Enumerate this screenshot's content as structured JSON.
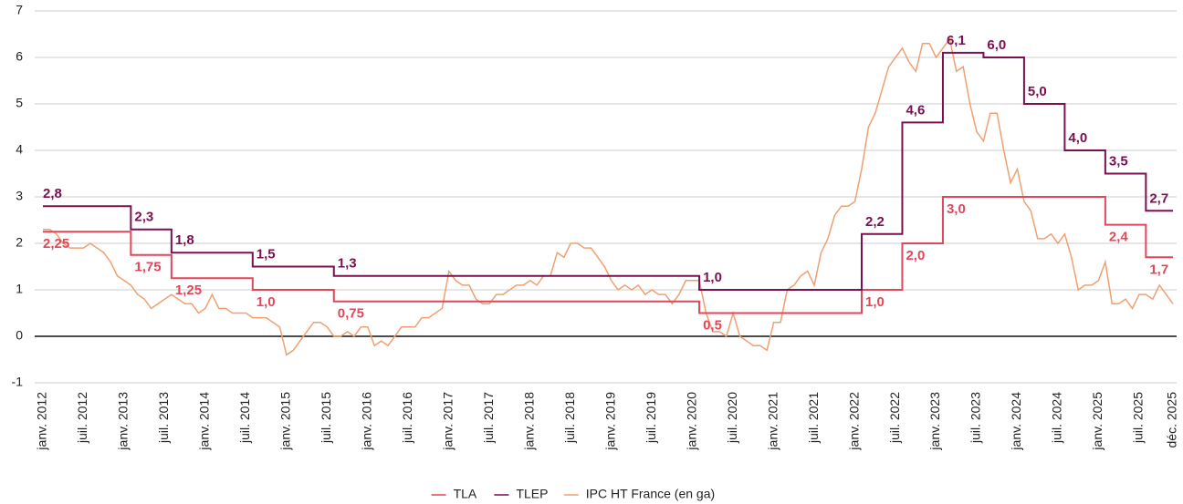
{
  "chart_data": {
    "type": "line",
    "categories": [
      "janv. 2012",
      null,
      null,
      null,
      null,
      null,
      "juil. 2012",
      null,
      null,
      null,
      null,
      null,
      "janv. 2013",
      null,
      null,
      null,
      null,
      null,
      "juil. 2013",
      null,
      null,
      null,
      null,
      null,
      "janv. 2014",
      null,
      null,
      null,
      null,
      null,
      "juil. 2014",
      null,
      null,
      null,
      null,
      null,
      "janv. 2015",
      null,
      null,
      null,
      null,
      null,
      "juil. 2015",
      null,
      null,
      null,
      null,
      null,
      "janv. 2016",
      null,
      null,
      null,
      null,
      null,
      "juil. 2016",
      null,
      null,
      null,
      null,
      null,
      "janv. 2017",
      null,
      null,
      null,
      null,
      null,
      "juil. 2017",
      null,
      null,
      null,
      null,
      null,
      "janv. 2018",
      null,
      null,
      null,
      null,
      null,
      "juil. 2018",
      null,
      null,
      null,
      null,
      null,
      "janv. 2019",
      null,
      null,
      null,
      null,
      null,
      "juil. 2019",
      null,
      null,
      null,
      null,
      null,
      "janv. 2020",
      null,
      null,
      null,
      null,
      null,
      "juil. 2020",
      null,
      null,
      null,
      null,
      null,
      "janv. 2021",
      null,
      null,
      null,
      null,
      null,
      "juil. 2021",
      null,
      null,
      null,
      null,
      null,
      "janv. 2022",
      null,
      null,
      null,
      null,
      null,
      "juil. 2022",
      null,
      null,
      null,
      null,
      null,
      "janv. 2023",
      null,
      null,
      null,
      null,
      null,
      "juil. 2023",
      null,
      null,
      null,
      null,
      null,
      "janv. 2024",
      null,
      null,
      null,
      null,
      null,
      "juil. 2024",
      null,
      null,
      null,
      null,
      null,
      "janv. 2025",
      null,
      null,
      null,
      null,
      null,
      "juil. 2025",
      null,
      null,
      null,
      null,
      "déc. 2025"
    ],
    "series": [
      {
        "name": "TLA",
        "color": "#e0475a",
        "step": true,
        "values": [
          2.25,
          2.25,
          2.25,
          2.25,
          2.25,
          2.25,
          2.25,
          2.25,
          2.25,
          2.25,
          2.25,
          2.25,
          2.25,
          1.75,
          1.75,
          1.75,
          1.75,
          1.75,
          1.75,
          1.25,
          1.25,
          1.25,
          1.25,
          1.25,
          1.25,
          1.25,
          1.25,
          1.25,
          1.25,
          1.25,
          1.25,
          1.0,
          1.0,
          1.0,
          1.0,
          1.0,
          1.0,
          1.0,
          1.0,
          1.0,
          1.0,
          1.0,
          1.0,
          0.75,
          0.75,
          0.75,
          0.75,
          0.75,
          0.75,
          0.75,
          0.75,
          0.75,
          0.75,
          0.75,
          0.75,
          0.75,
          0.75,
          0.75,
          0.75,
          0.75,
          0.75,
          0.75,
          0.75,
          0.75,
          0.75,
          0.75,
          0.75,
          0.75,
          0.75,
          0.75,
          0.75,
          0.75,
          0.75,
          0.75,
          0.75,
          0.75,
          0.75,
          0.75,
          0.75,
          0.75,
          0.75,
          0.75,
          0.75,
          0.75,
          0.75,
          0.75,
          0.75,
          0.75,
          0.75,
          0.75,
          0.75,
          0.75,
          0.75,
          0.75,
          0.75,
          0.75,
          0.75,
          0.5,
          0.5,
          0.5,
          0.5,
          0.5,
          0.5,
          0.5,
          0.5,
          0.5,
          0.5,
          0.5,
          0.5,
          0.5,
          0.5,
          0.5,
          0.5,
          0.5,
          0.5,
          0.5,
          0.5,
          0.5,
          0.5,
          0.5,
          0.5,
          1.0,
          1.0,
          1.0,
          1.0,
          1.0,
          1.0,
          2.0,
          2.0,
          2.0,
          2.0,
          2.0,
          2.0,
          3.0,
          3.0,
          3.0,
          3.0,
          3.0,
          3.0,
          3.0,
          3.0,
          3.0,
          3.0,
          3.0,
          3.0,
          3.0,
          3.0,
          3.0,
          3.0,
          3.0,
          3.0,
          3.0,
          3.0,
          3.0,
          3.0,
          3.0,
          3.0,
          2.4,
          2.4,
          2.4,
          2.4,
          2.4,
          2.4,
          1.7,
          1.7,
          1.7,
          1.7,
          1.7
        ],
        "value_labels": [
          "2,25",
          null,
          null,
          null,
          null,
          null,
          null,
          null,
          null,
          null,
          null,
          null,
          null,
          "1,75",
          null,
          null,
          null,
          null,
          null,
          "1,25",
          null,
          null,
          null,
          null,
          null,
          null,
          null,
          null,
          null,
          null,
          null,
          "1,0",
          null,
          null,
          null,
          null,
          null,
          null,
          null,
          null,
          null,
          null,
          null,
          "0,75",
          null,
          null,
          null,
          null,
          null,
          null,
          null,
          null,
          null,
          null,
          null,
          null,
          null,
          null,
          null,
          null,
          null,
          null,
          null,
          null,
          null,
          null,
          null,
          null,
          null,
          null,
          null,
          null,
          null,
          null,
          null,
          null,
          null,
          null,
          null,
          null,
          null,
          null,
          null,
          null,
          null,
          null,
          null,
          null,
          null,
          null,
          null,
          null,
          null,
          null,
          null,
          null,
          null,
          "0,5",
          null,
          null,
          null,
          null,
          null,
          null,
          null,
          null,
          null,
          null,
          null,
          null,
          null,
          null,
          null,
          null,
          null,
          null,
          null,
          null,
          null,
          null,
          null,
          "1,0",
          null,
          null,
          null,
          null,
          null,
          "2,0",
          null,
          null,
          null,
          null,
          null,
          "3,0",
          null,
          null,
          null,
          null,
          null,
          null,
          null,
          null,
          null,
          null,
          null,
          null,
          null,
          null,
          null,
          null,
          null,
          null,
          null,
          null,
          null,
          null,
          null,
          "2,4",
          null,
          null,
          null,
          null,
          null,
          "1,7",
          null,
          null,
          null,
          null
        ]
      },
      {
        "name": "TLEP",
        "color": "#7a1050",
        "step": true,
        "values": [
          2.8,
          2.8,
          2.8,
          2.8,
          2.8,
          2.8,
          2.8,
          2.8,
          2.8,
          2.8,
          2.8,
          2.8,
          2.8,
          2.3,
          2.3,
          2.3,
          2.3,
          2.3,
          2.3,
          1.8,
          1.8,
          1.8,
          1.8,
          1.8,
          1.8,
          1.8,
          1.8,
          1.8,
          1.8,
          1.8,
          1.8,
          1.5,
          1.5,
          1.5,
          1.5,
          1.5,
          1.5,
          1.5,
          1.5,
          1.5,
          1.5,
          1.5,
          1.5,
          1.3,
          1.3,
          1.3,
          1.3,
          1.3,
          1.3,
          1.3,
          1.3,
          1.3,
          1.3,
          1.3,
          1.3,
          1.3,
          1.3,
          1.3,
          1.3,
          1.3,
          1.3,
          1.3,
          1.3,
          1.3,
          1.3,
          1.3,
          1.3,
          1.3,
          1.3,
          1.3,
          1.3,
          1.3,
          1.3,
          1.3,
          1.3,
          1.3,
          1.3,
          1.3,
          1.3,
          1.3,
          1.3,
          1.3,
          1.3,
          1.3,
          1.3,
          1.3,
          1.3,
          1.3,
          1.3,
          1.3,
          1.3,
          1.3,
          1.3,
          1.3,
          1.3,
          1.3,
          1.3,
          1.0,
          1.0,
          1.0,
          1.0,
          1.0,
          1.0,
          1.0,
          1.0,
          1.0,
          1.0,
          1.0,
          1.0,
          1.0,
          1.0,
          1.0,
          1.0,
          1.0,
          1.0,
          1.0,
          1.0,
          1.0,
          1.0,
          1.0,
          1.0,
          2.2,
          2.2,
          2.2,
          2.2,
          2.2,
          2.2,
          4.6,
          4.6,
          4.6,
          4.6,
          4.6,
          4.6,
          6.1,
          6.1,
          6.1,
          6.1,
          6.1,
          6.1,
          6.0,
          6.0,
          6.0,
          6.0,
          6.0,
          6.0,
          5.0,
          5.0,
          5.0,
          5.0,
          5.0,
          5.0,
          4.0,
          4.0,
          4.0,
          4.0,
          4.0,
          4.0,
          3.5,
          3.5,
          3.5,
          3.5,
          3.5,
          3.5,
          2.7,
          2.7,
          2.7,
          2.7,
          2.7
        ],
        "value_labels": [
          "2,8",
          null,
          null,
          null,
          null,
          null,
          null,
          null,
          null,
          null,
          null,
          null,
          null,
          "2,3",
          null,
          null,
          null,
          null,
          null,
          "1,8",
          null,
          null,
          null,
          null,
          null,
          null,
          null,
          null,
          null,
          null,
          null,
          "1,5",
          null,
          null,
          null,
          null,
          null,
          null,
          null,
          null,
          null,
          null,
          null,
          "1,3",
          null,
          null,
          null,
          null,
          null,
          null,
          null,
          null,
          null,
          null,
          null,
          null,
          null,
          null,
          null,
          null,
          null,
          null,
          null,
          null,
          null,
          null,
          null,
          null,
          null,
          null,
          null,
          null,
          null,
          null,
          null,
          null,
          null,
          null,
          null,
          null,
          null,
          null,
          null,
          null,
          null,
          null,
          null,
          null,
          null,
          null,
          null,
          null,
          null,
          null,
          null,
          null,
          null,
          "1,0",
          null,
          null,
          null,
          null,
          null,
          null,
          null,
          null,
          null,
          null,
          null,
          null,
          null,
          null,
          null,
          null,
          null,
          null,
          null,
          null,
          null,
          null,
          null,
          "2,2",
          null,
          null,
          null,
          null,
          null,
          "4,6",
          null,
          null,
          null,
          null,
          null,
          "6,1",
          null,
          null,
          null,
          null,
          null,
          "6,0",
          null,
          null,
          null,
          null,
          null,
          "5,0",
          null,
          null,
          null,
          null,
          null,
          "4,0",
          null,
          null,
          null,
          null,
          null,
          "3,5",
          null,
          null,
          null,
          null,
          null,
          "2,7",
          null,
          null,
          null,
          null
        ]
      },
      {
        "name": "IPC HT France (en ga)",
        "color": "#f0a070",
        "values": [
          2.3,
          2.3,
          2.2,
          2.0,
          1.9,
          1.9,
          1.9,
          2.0,
          1.9,
          1.8,
          1.6,
          1.3,
          1.2,
          1.1,
          0.9,
          0.8,
          0.6,
          0.7,
          0.8,
          0.9,
          0.8,
          0.7,
          0.7,
          0.5,
          0.6,
          0.9,
          0.6,
          0.6,
          0.5,
          0.5,
          0.5,
          0.4,
          0.4,
          0.4,
          0.3,
          0.2,
          -0.4,
          -0.3,
          -0.1,
          0.1,
          0.3,
          0.3,
          0.2,
          0.0,
          0.0,
          0.1,
          0.0,
          0.2,
          0.2,
          -0.2,
          -0.1,
          -0.2,
          0.0,
          0.2,
          0.2,
          0.2,
          0.4,
          0.4,
          0.5,
          0.6,
          1.4,
          1.2,
          1.1,
          1.1,
          0.8,
          0.7,
          0.7,
          0.9,
          0.9,
          1.0,
          1.1,
          1.1,
          1.2,
          1.1,
          1.3,
          1.3,
          1.8,
          1.7,
          2.0,
          2.0,
          1.9,
          1.9,
          1.7,
          1.5,
          1.2,
          1.0,
          1.1,
          1.0,
          1.1,
          0.9,
          1.0,
          0.9,
          0.9,
          0.7,
          0.9,
          1.2,
          1.2,
          1.2,
          0.5,
          0.1,
          0.1,
          0.0,
          0.5,
          0.0,
          -0.1,
          -0.2,
          -0.2,
          -0.3,
          0.3,
          0.3,
          1.0,
          1.1,
          1.3,
          1.4,
          1.1,
          1.8,
          2.1,
          2.6,
          2.8,
          2.8,
          2.9,
          3.6,
          4.5,
          4.8,
          5.3,
          5.8,
          6.0,
          6.2,
          5.9,
          5.7,
          6.3,
          6.3,
          6.0,
          6.2,
          6.4,
          5.7,
          5.8,
          5.0,
          4.4,
          4.2,
          4.8,
          4.8,
          4.0,
          3.3,
          3.6,
          2.9,
          2.7,
          2.1,
          2.1,
          2.2,
          2.0,
          2.2,
          1.7,
          1.0,
          1.1,
          1.1,
          1.2,
          1.6,
          0.7,
          0.7,
          0.8,
          0.6,
          0.9,
          0.9,
          0.8,
          1.1,
          0.9,
          0.7
        ]
      }
    ],
    "ylim": [
      -1,
      7
    ],
    "yticks": [
      -1,
      0,
      1,
      2,
      3,
      4,
      5,
      6,
      7
    ],
    "grid": true,
    "legend": "bottom"
  }
}
